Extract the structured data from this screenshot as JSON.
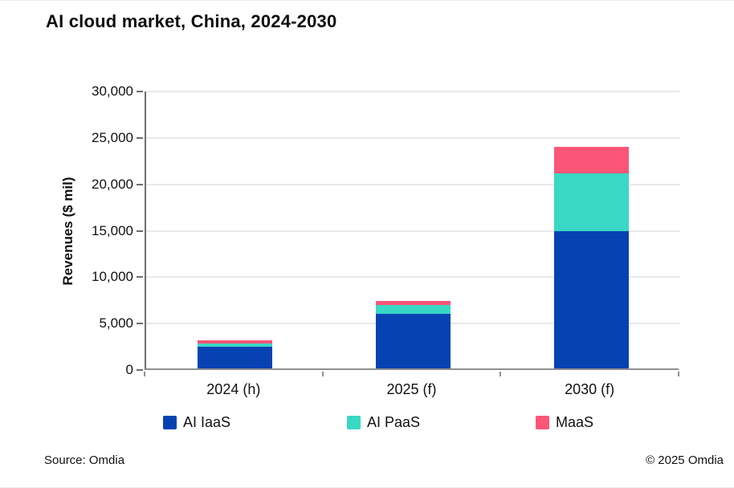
{
  "title": "AI cloud market, China, 2024-2030",
  "footer": {
    "source": "Source: Omdia",
    "copyright": "© 2025 Omdia"
  },
  "chart_data": {
    "type": "bar",
    "stacked": true,
    "title": "AI cloud market, China, 2024-2030",
    "categories": [
      "2024 (h)",
      "2025 (f)",
      "2030 (f)"
    ],
    "series": [
      {
        "name": "AI IaaS",
        "color": "#0742b3",
        "values": [
          2300,
          5900,
          14800
        ]
      },
      {
        "name": "AI PaaS",
        "color": "#38d8c5",
        "values": [
          420,
          950,
          6200
        ]
      },
      {
        "name": "MaaS",
        "color": "#fb5578",
        "values": [
          350,
          430,
          2850
        ]
      }
    ],
    "xlabel": "",
    "ylabel": "Revenues ($ mil)",
    "ylim": [
      0,
      30000
    ],
    "yticks": [
      0,
      5000,
      10000,
      15000,
      20000,
      25000,
      30000
    ],
    "grid": true,
    "legend_position": "bottom"
  }
}
